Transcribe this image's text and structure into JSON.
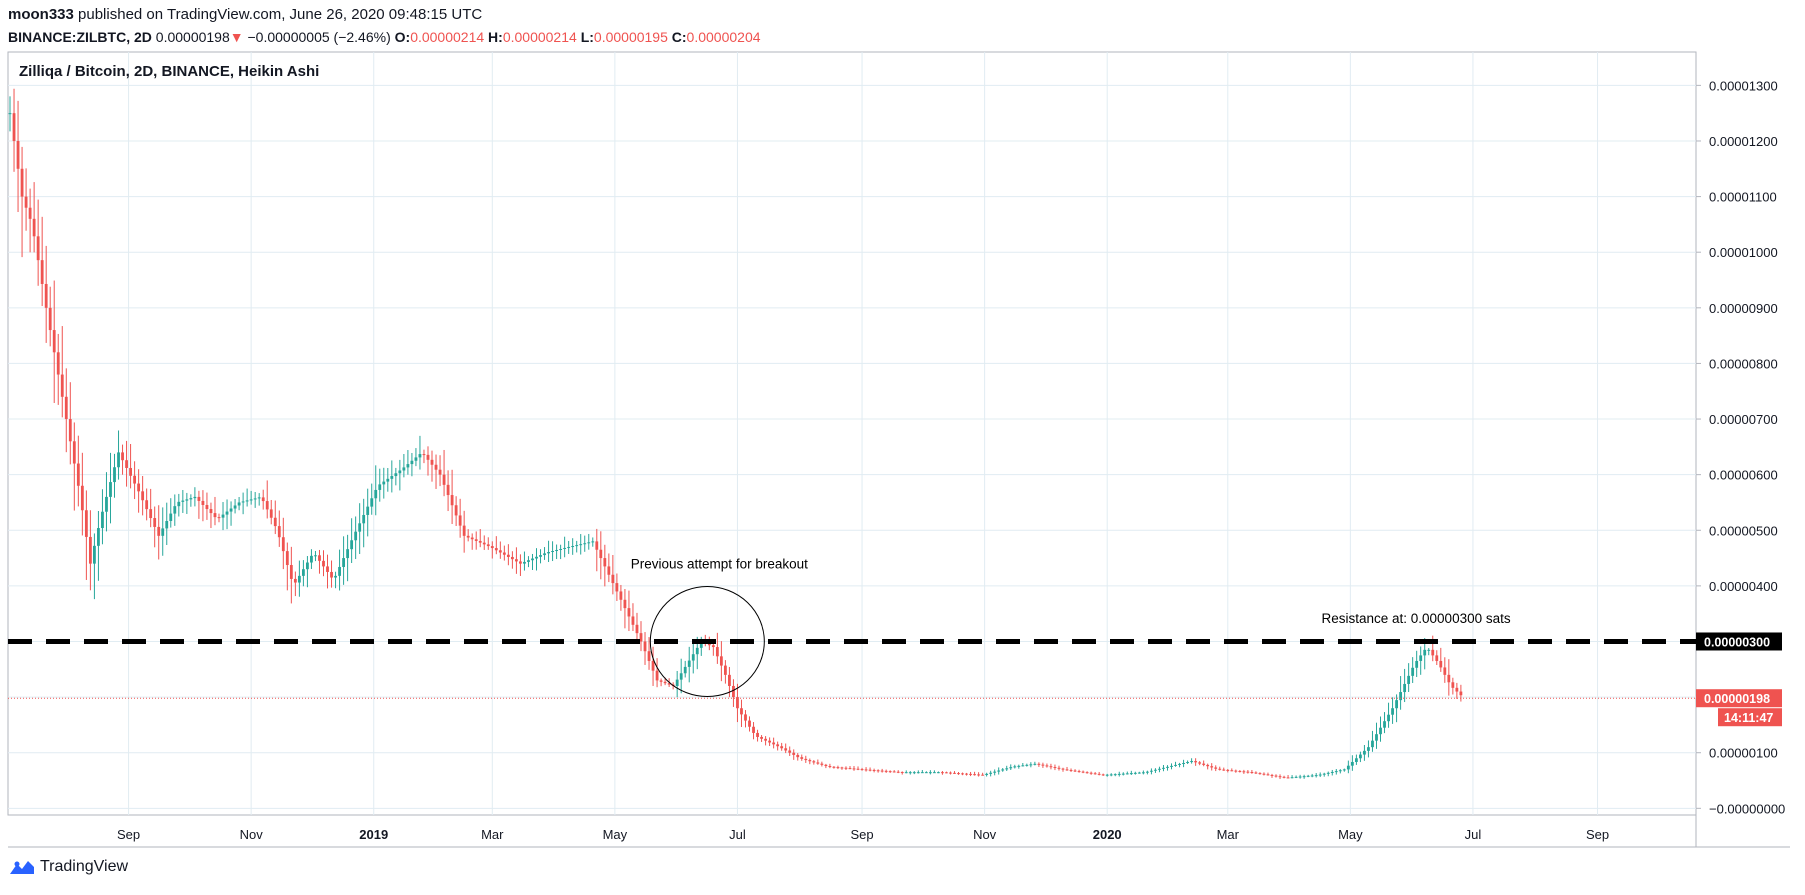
{
  "publish_line": {
    "user": "moon333",
    "rest": "published on TradingView.com, June 26, 2020 09:48:15 UTC"
  },
  "ticker_line": {
    "symbol": "BINANCE:ZILBTC, 2D",
    "price": "0.00000198",
    "arrow": "▼",
    "change": "−0.00000005 (−2.46%)",
    "o_label": "O:",
    "o": "0.00000214",
    "h_label": "H:",
    "h": "0.00000214",
    "l_label": "L:",
    "l": "0.00000195",
    "c_label": "C:",
    "c": "0.00000204"
  },
  "brand": {
    "name": "TradingView",
    "logo_icon": "tradingview-logo-icon"
  },
  "colors": {
    "up": "#26a69a",
    "down": "#ef5350",
    "grid": "#e1ecf2",
    "line": "#000000"
  },
  "chart_data": {
    "type": "candlestick",
    "title": "Zilliqa / Bitcoin, 2D, BINANCE, Heikin Ashi",
    "x_tick_labels": [
      "Sep",
      "Nov",
      "2019",
      "Mar",
      "May",
      "Jul",
      "Sep",
      "Nov",
      "2020",
      "Mar",
      "May",
      "Jul",
      "Sep"
    ],
    "bold_x_labels": [
      "2019",
      "2020"
    ],
    "y_tick_labels": [
      "0.00001300",
      "0.00001200",
      "0.00001100",
      "0.00001000",
      "0.00000900",
      "0.00000800",
      "0.00000700",
      "0.00000600",
      "0.00000500",
      "0.00000400",
      "0.00000300",
      "0.00000200",
      "0.00000100",
      "−0.00000000"
    ],
    "y_tick_values": [
      1300,
      1200,
      1100,
      1000,
      900,
      800,
      700,
      600,
      500,
      400,
      300,
      200,
      100,
      0
    ],
    "y_unit": "sats (×1e-8 BTC)",
    "ylim": [
      -12,
      1360
    ],
    "grid": true,
    "x_range": [
      "2018-07-03",
      "2020-10-20"
    ],
    "price_path": [
      [
        "2018-07-04",
        1250
      ],
      [
        "2018-07-10",
        1100
      ],
      [
        "2018-07-15",
        1050
      ],
      [
        "2018-07-22",
        900
      ],
      [
        "2018-07-30",
        740
      ],
      [
        "2018-08-08",
        560
      ],
      [
        "2018-08-13",
        440
      ],
      [
        "2018-08-18",
        520
      ],
      [
        "2018-08-27",
        640
      ],
      [
        "2018-09-06",
        570
      ],
      [
        "2018-09-16",
        490
      ],
      [
        "2018-09-25",
        550
      ],
      [
        "2018-10-04",
        560
      ],
      [
        "2018-10-15",
        520
      ],
      [
        "2018-10-26",
        550
      ],
      [
        "2018-11-06",
        560
      ],
      [
        "2018-11-14",
        500
      ],
      [
        "2018-11-22",
        400
      ],
      [
        "2018-12-02",
        460
      ],
      [
        "2018-12-12",
        410
      ],
      [
        "2018-12-22",
        490
      ],
      [
        "2019-01-03",
        580
      ],
      [
        "2019-01-15",
        610
      ],
      [
        "2019-01-25",
        640
      ],
      [
        "2019-02-03",
        600
      ],
      [
        "2019-02-15",
        490
      ],
      [
        "2019-02-28",
        470
      ],
      [
        "2019-03-15",
        440
      ],
      [
        "2019-03-28",
        460
      ],
      [
        "2019-04-08",
        470
      ],
      [
        "2019-04-20",
        480
      ],
      [
        "2019-04-28",
        420
      ],
      [
        "2019-05-06",
        360
      ],
      [
        "2019-05-14",
        300
      ],
      [
        "2019-05-22",
        230
      ],
      [
        "2019-05-30",
        220
      ],
      [
        "2019-06-06",
        260
      ],
      [
        "2019-06-13",
        300
      ],
      [
        "2019-06-19",
        290
      ],
      [
        "2019-06-25",
        240
      ],
      [
        "2019-07-01",
        180
      ],
      [
        "2019-07-10",
        130
      ],
      [
        "2019-07-22",
        110
      ],
      [
        "2019-08-01",
        90
      ],
      [
        "2019-08-15",
        75
      ],
      [
        "2019-09-01",
        70
      ],
      [
        "2019-09-20",
        65
      ],
      [
        "2019-10-10",
        65
      ],
      [
        "2019-10-31",
        60
      ],
      [
        "2019-11-15",
        75
      ],
      [
        "2019-11-26",
        80
      ],
      [
        "2019-12-10",
        70
      ],
      [
        "2019-12-30",
        60
      ],
      [
        "2020-01-20",
        65
      ],
      [
        "2020-02-12",
        85
      ],
      [
        "2020-02-25",
        70
      ],
      [
        "2020-03-12",
        65
      ],
      [
        "2020-03-30",
        55
      ],
      [
        "2020-04-15",
        60
      ],
      [
        "2020-04-28",
        70
      ],
      [
        "2020-05-10",
        110
      ],
      [
        "2020-05-22",
        180
      ],
      [
        "2020-06-02",
        260
      ],
      [
        "2020-06-08",
        290
      ],
      [
        "2020-06-14",
        260
      ],
      [
        "2020-06-20",
        220
      ],
      [
        "2020-06-26",
        200
      ]
    ],
    "resistance": {
      "value": 300,
      "label": "0.00000300"
    },
    "last_price": {
      "value": 198,
      "label": "0.00000198",
      "countdown": "14:11:47"
    },
    "annotations": [
      {
        "text": "Previous attempt for breakout",
        "kind": "circle",
        "center_date": "2019-06-16",
        "center_value": 300
      },
      {
        "text": "Resistance at: 0.00000300 sats",
        "date": "2020-05-15",
        "value": 340
      }
    ]
  }
}
